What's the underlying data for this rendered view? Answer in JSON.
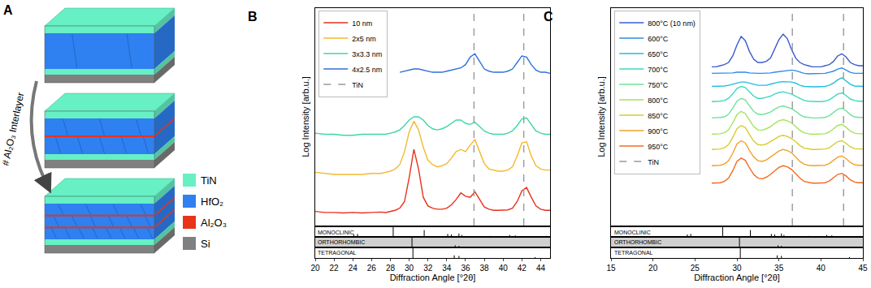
{
  "diagram": {
    "label": "A",
    "arrow_label": "# Al₂O₃ Interlayer",
    "legend": [
      {
        "name": "TiN",
        "color": "#66f0c4"
      },
      {
        "name": "HfO₂",
        "color": "#2f80f0"
      },
      {
        "name": "Al₂O₃",
        "color": "#e8341a"
      },
      {
        "name": "Si",
        "color": "#808080"
      }
    ]
  },
  "chart_data": [
    {
      "type": "line",
      "title": "B",
      "x_label": "Diffraction Angle [°2θ]",
      "y_label": "Log Intensity [arb.u.]",
      "x": [
        20,
        21,
        22,
        23,
        24,
        25,
        26,
        27,
        27.5,
        28,
        28.5,
        29,
        29.5,
        30,
        30.5,
        31,
        31.5,
        32,
        32.5,
        33,
        33.5,
        34,
        34.5,
        35,
        35.5,
        36,
        36.5,
        37,
        37.5,
        38,
        38.5,
        39,
        39.5,
        40,
        40.5,
        41,
        41.5,
        42,
        42.5,
        43,
        43.5,
        44,
        44.5,
        45
      ],
      "series": [
        {
          "name": "10 nm",
          "color": "#e8311a",
          "line_style": "solid",
          "values": [
            0.65,
            0.6,
            0.6,
            0.58,
            0.6,
            0.58,
            0.6,
            0.62,
            0.6,
            0.65,
            0.7,
            0.8,
            1.1,
            2.2,
            3.5,
            2.6,
            1.3,
            0.9,
            0.8,
            0.75,
            0.75,
            0.8,
            0.95,
            1.2,
            1.5,
            1.35,
            1.3,
            1.55,
            1.2,
            0.85,
            0.75,
            0.7,
            0.7,
            0.7,
            0.72,
            0.8,
            1.1,
            1.6,
            1.75,
            1.3,
            0.9,
            0.75,
            0.7,
            0.7
          ]
        },
        {
          "name": "2x5 nm",
          "color": "#f5b830",
          "line_style": "solid",
          "values": [
            2.45,
            2.4,
            2.35,
            2.35,
            2.35,
            2.35,
            2.4,
            2.4,
            2.45,
            2.5,
            2.6,
            2.8,
            3.4,
            4.3,
            4.8,
            4.4,
            3.6,
            3.0,
            2.8,
            2.7,
            2.75,
            2.85,
            3.1,
            3.4,
            3.5,
            3.4,
            3.7,
            3.95,
            3.4,
            2.85,
            2.6,
            2.55,
            2.5,
            2.5,
            2.55,
            2.7,
            3.2,
            3.8,
            3.85,
            3.2,
            2.75,
            2.6,
            2.55,
            2.55
          ]
        },
        {
          "name": "3x3.3 nm",
          "color": "#3dd8a0",
          "line_style": "solid",
          "values": [
            4.25,
            4.2,
            4.2,
            4.15,
            4.15,
            4.2,
            4.2,
            4.2,
            4.2,
            4.25,
            4.3,
            4.4,
            4.6,
            4.85,
            5.0,
            5.0,
            4.85,
            4.6,
            4.45,
            4.4,
            4.45,
            4.55,
            4.7,
            4.85,
            4.85,
            4.7,
            4.65,
            4.75,
            4.55,
            4.35,
            4.25,
            4.2,
            4.2,
            4.2,
            4.25,
            4.35,
            4.6,
            4.9,
            4.95,
            4.65,
            4.35,
            4.25,
            4.2,
            4.2
          ]
        },
        {
          "name": "4x2.5 nm",
          "color": "#2f6fd8",
          "line_style": "solid",
          "values": [
            null,
            null,
            null,
            null,
            null,
            null,
            null,
            null,
            null,
            null,
            null,
            7.05,
            7.1,
            7.15,
            7.2,
            7.2,
            7.15,
            7.1,
            7.05,
            7.05,
            7.05,
            7.1,
            7.15,
            7.2,
            7.25,
            7.4,
            7.75,
            7.9,
            7.55,
            7.2,
            7.1,
            7.05,
            7.05,
            7.05,
            7.1,
            7.2,
            7.5,
            7.8,
            7.75,
            7.4,
            7.15,
            7.05,
            7.05,
            7.0
          ]
        },
        {
          "name": "TiN",
          "type": "vline",
          "color": "#999999",
          "line_style": "dashed",
          "x": [
            36.9,
            42.2
          ]
        }
      ],
      "xlim": [
        20,
        45
      ],
      "xticks": [
        20,
        22,
        24,
        26,
        28,
        30,
        32,
        34,
        36,
        38,
        40,
        42,
        44
      ],
      "ylim": [
        0,
        10
      ],
      "tick_labels": "x",
      "grid": false,
      "legend": "upper left",
      "references": {
        "ylim": [
          0,
          100
        ],
        "patterns": [
          {
            "name": "MONOCLINIC",
            "x": [
              24.1,
              24.5,
              28.3,
              31.6,
              34.1,
              34.5,
              35.3,
              35.6,
              38.6,
              40.7,
              41.3,
              44.6
            ],
            "values": [
              25,
              30,
              100,
              70,
              30,
              25,
              35,
              20,
              10,
              20,
              15,
              10
            ]
          },
          {
            "name": "ORTHORHOMBIC",
            "x": [
              30.3,
              34.9,
              35.3,
              40.4,
              43.1
            ],
            "values": [
              100,
              20,
              15,
              5,
              8
            ]
          },
          {
            "name": "TETRAGONAL",
            "x": [
              30.4,
              34.8,
              35.3,
              43.4
            ],
            "values": [
              100,
              25,
              20,
              8
            ]
          }
        ]
      }
    },
    {
      "type": "line",
      "title": "C",
      "x_label": "Diffraction Angle [°2θ]",
      "y_label": "Log Intensity [arb.u.]",
      "x": [
        27,
        27.5,
        28,
        28.5,
        29,
        29.5,
        30,
        30.5,
        31,
        31.5,
        32,
        32.5,
        33,
        33.5,
        34,
        34.5,
        35,
        35.5,
        36,
        36.5,
        37,
        37.5,
        38,
        38.5,
        39,
        39.5,
        40,
        40.5,
        41,
        41.5,
        42,
        42.5,
        43,
        43.5,
        44,
        44.5,
        45
      ],
      "series": [
        {
          "name": "800°C (10 nm)",
          "color": "#3a5bd1",
          "line_style": "solid",
          "values": [
            7.3,
            7.3,
            7.35,
            7.4,
            7.5,
            7.8,
            8.3,
            8.7,
            8.5,
            8.0,
            7.65,
            7.5,
            7.5,
            7.55,
            7.7,
            8.1,
            8.55,
            8.8,
            8.6,
            8.1,
            7.7,
            7.5,
            7.4,
            7.35,
            7.3,
            7.3,
            7.3,
            7.35,
            7.4,
            7.55,
            7.8,
            7.9,
            7.75,
            7.5,
            7.4,
            7.35,
            7.35
          ]
        },
        {
          "name": "600°C",
          "color": "#2f8be6",
          "line_style": "solid",
          "values": [
            7.0,
            7.0,
            7.0,
            7.0,
            7.0,
            7.02,
            7.05,
            7.05,
            7.05,
            7.02,
            7.0,
            7.0,
            7.0,
            7.0,
            7.02,
            7.05,
            7.08,
            7.1,
            7.12,
            7.15,
            7.12,
            7.05,
            7.0,
            6.98,
            6.98,
            6.98,
            7.0,
            7.0,
            7.05,
            7.1,
            7.2,
            7.25,
            7.15,
            7.05,
            7.0,
            7.0,
            7.0
          ]
        },
        {
          "name": "650°C",
          "color": "#22bde0",
          "line_style": "solid",
          "values": [
            6.4,
            6.4,
            6.4,
            6.42,
            6.45,
            6.5,
            6.55,
            6.6,
            6.6,
            6.55,
            6.5,
            6.45,
            6.45,
            6.45,
            6.5,
            6.55,
            6.6,
            6.62,
            6.62,
            6.6,
            6.55,
            6.45,
            6.4,
            6.38,
            6.38,
            6.38,
            6.4,
            6.4,
            6.45,
            6.55,
            6.7,
            6.8,
            6.65,
            6.5,
            6.42,
            6.4,
            6.4
          ]
        },
        {
          "name": "700°C",
          "color": "#3fd8c0",
          "line_style": "solid",
          "values": [
            5.7,
            5.7,
            5.72,
            5.75,
            5.85,
            6.05,
            6.3,
            6.4,
            6.35,
            6.15,
            5.95,
            5.85,
            5.85,
            5.9,
            5.95,
            6.05,
            6.12,
            6.15,
            6.1,
            6.05,
            5.95,
            5.85,
            5.75,
            5.72,
            5.7,
            5.7,
            5.7,
            5.72,
            5.78,
            5.9,
            6.05,
            6.1,
            5.98,
            5.82,
            5.75,
            5.72,
            5.72
          ]
        },
        {
          "name": "750°C",
          "color": "#6de39a",
          "line_style": "solid",
          "values": [
            4.95,
            4.95,
            4.97,
            5.0,
            5.12,
            5.4,
            5.72,
            5.85,
            5.78,
            5.5,
            5.25,
            5.12,
            5.1,
            5.15,
            5.22,
            5.35,
            5.45,
            5.5,
            5.45,
            5.38,
            5.25,
            5.1,
            5.0,
            4.97,
            4.95,
            4.95,
            4.95,
            4.97,
            5.05,
            5.2,
            5.35,
            5.4,
            5.28,
            5.1,
            5.0,
            4.97,
            4.97
          ]
        },
        {
          "name": "800°C",
          "color": "#a6e35a",
          "line_style": "solid",
          "values": [
            4.2,
            4.2,
            4.22,
            4.27,
            4.4,
            4.72,
            5.1,
            5.25,
            5.15,
            4.85,
            4.55,
            4.4,
            4.38,
            4.45,
            4.55,
            4.7,
            4.82,
            4.87,
            4.82,
            4.72,
            4.55,
            4.38,
            4.27,
            4.22,
            4.2,
            4.2,
            4.2,
            4.22,
            4.3,
            4.45,
            4.6,
            4.65,
            4.52,
            4.35,
            4.25,
            4.22,
            4.22
          ]
        },
        {
          "name": "850°C",
          "color": "#d6cc2e",
          "line_style": "solid",
          "values": [
            3.5,
            3.5,
            3.52,
            3.58,
            3.72,
            4.05,
            4.45,
            4.6,
            4.5,
            4.18,
            3.88,
            3.72,
            3.7,
            3.75,
            3.85,
            3.98,
            4.1,
            4.15,
            4.1,
            4.0,
            3.85,
            3.68,
            3.56,
            3.52,
            3.5,
            3.5,
            3.5,
            3.52,
            3.58,
            3.72,
            3.86,
            3.9,
            3.78,
            3.62,
            3.54,
            3.52,
            3.52
          ]
        },
        {
          "name": "900°C",
          "color": "#f4a028",
          "line_style": "solid",
          "values": [
            2.75,
            2.75,
            2.77,
            2.83,
            2.98,
            3.32,
            3.75,
            3.9,
            3.8,
            3.45,
            3.15,
            2.98,
            2.95,
            3.02,
            3.15,
            3.3,
            3.43,
            3.5,
            3.45,
            3.35,
            3.15,
            2.95,
            2.82,
            2.77,
            2.75,
            2.75,
            2.75,
            2.77,
            2.85,
            3.0,
            3.15,
            3.2,
            3.08,
            2.9,
            2.8,
            2.77,
            2.77
          ]
        },
        {
          "name": "950°C",
          "color": "#f26a22",
          "line_style": "solid",
          "values": [
            1.95,
            1.95,
            1.97,
            2.03,
            2.18,
            2.52,
            2.95,
            3.1,
            3.0,
            2.65,
            2.35,
            2.18,
            2.15,
            2.22,
            2.35,
            2.52,
            2.67,
            2.75,
            2.7,
            2.58,
            2.38,
            2.18,
            2.03,
            1.98,
            1.95,
            1.95,
            1.95,
            1.97,
            2.05,
            2.2,
            2.35,
            2.4,
            2.28,
            2.1,
            2.0,
            1.97,
            1.97
          ]
        },
        {
          "name": "TiN",
          "type": "vline",
          "color": "#999999",
          "line_style": "dashed",
          "x": [
            36.6,
            42.7
          ]
        }
      ],
      "xlim": [
        15,
        45
      ],
      "xticks": [
        15,
        20,
        25,
        30,
        35,
        40,
        45
      ],
      "ylim": [
        0,
        10
      ],
      "tick_labels": "x",
      "grid": false,
      "legend": "upper left",
      "references": {
        "ylim": [
          0,
          100
        ],
        "patterns": [
          {
            "name": "MONOCLINIC",
            "x": [
              24.1,
              24.5,
              28.3,
              31.6,
              34.1,
              34.5,
              35.3,
              35.6,
              38.6,
              40.7,
              41.3,
              44.6
            ],
            "values": [
              25,
              30,
              100,
              70,
              30,
              25,
              35,
              20,
              10,
              20,
              15,
              10
            ]
          },
          {
            "name": "ORTHORHOMBIC",
            "x": [
              30.3,
              34.9,
              35.3,
              40.4,
              43.1
            ],
            "values": [
              100,
              20,
              15,
              5,
              8
            ]
          },
          {
            "name": "TETRAGONAL",
            "x": [
              30.4,
              34.8,
              35.3,
              43.4
            ],
            "values": [
              100,
              25,
              20,
              8
            ]
          }
        ]
      }
    }
  ]
}
